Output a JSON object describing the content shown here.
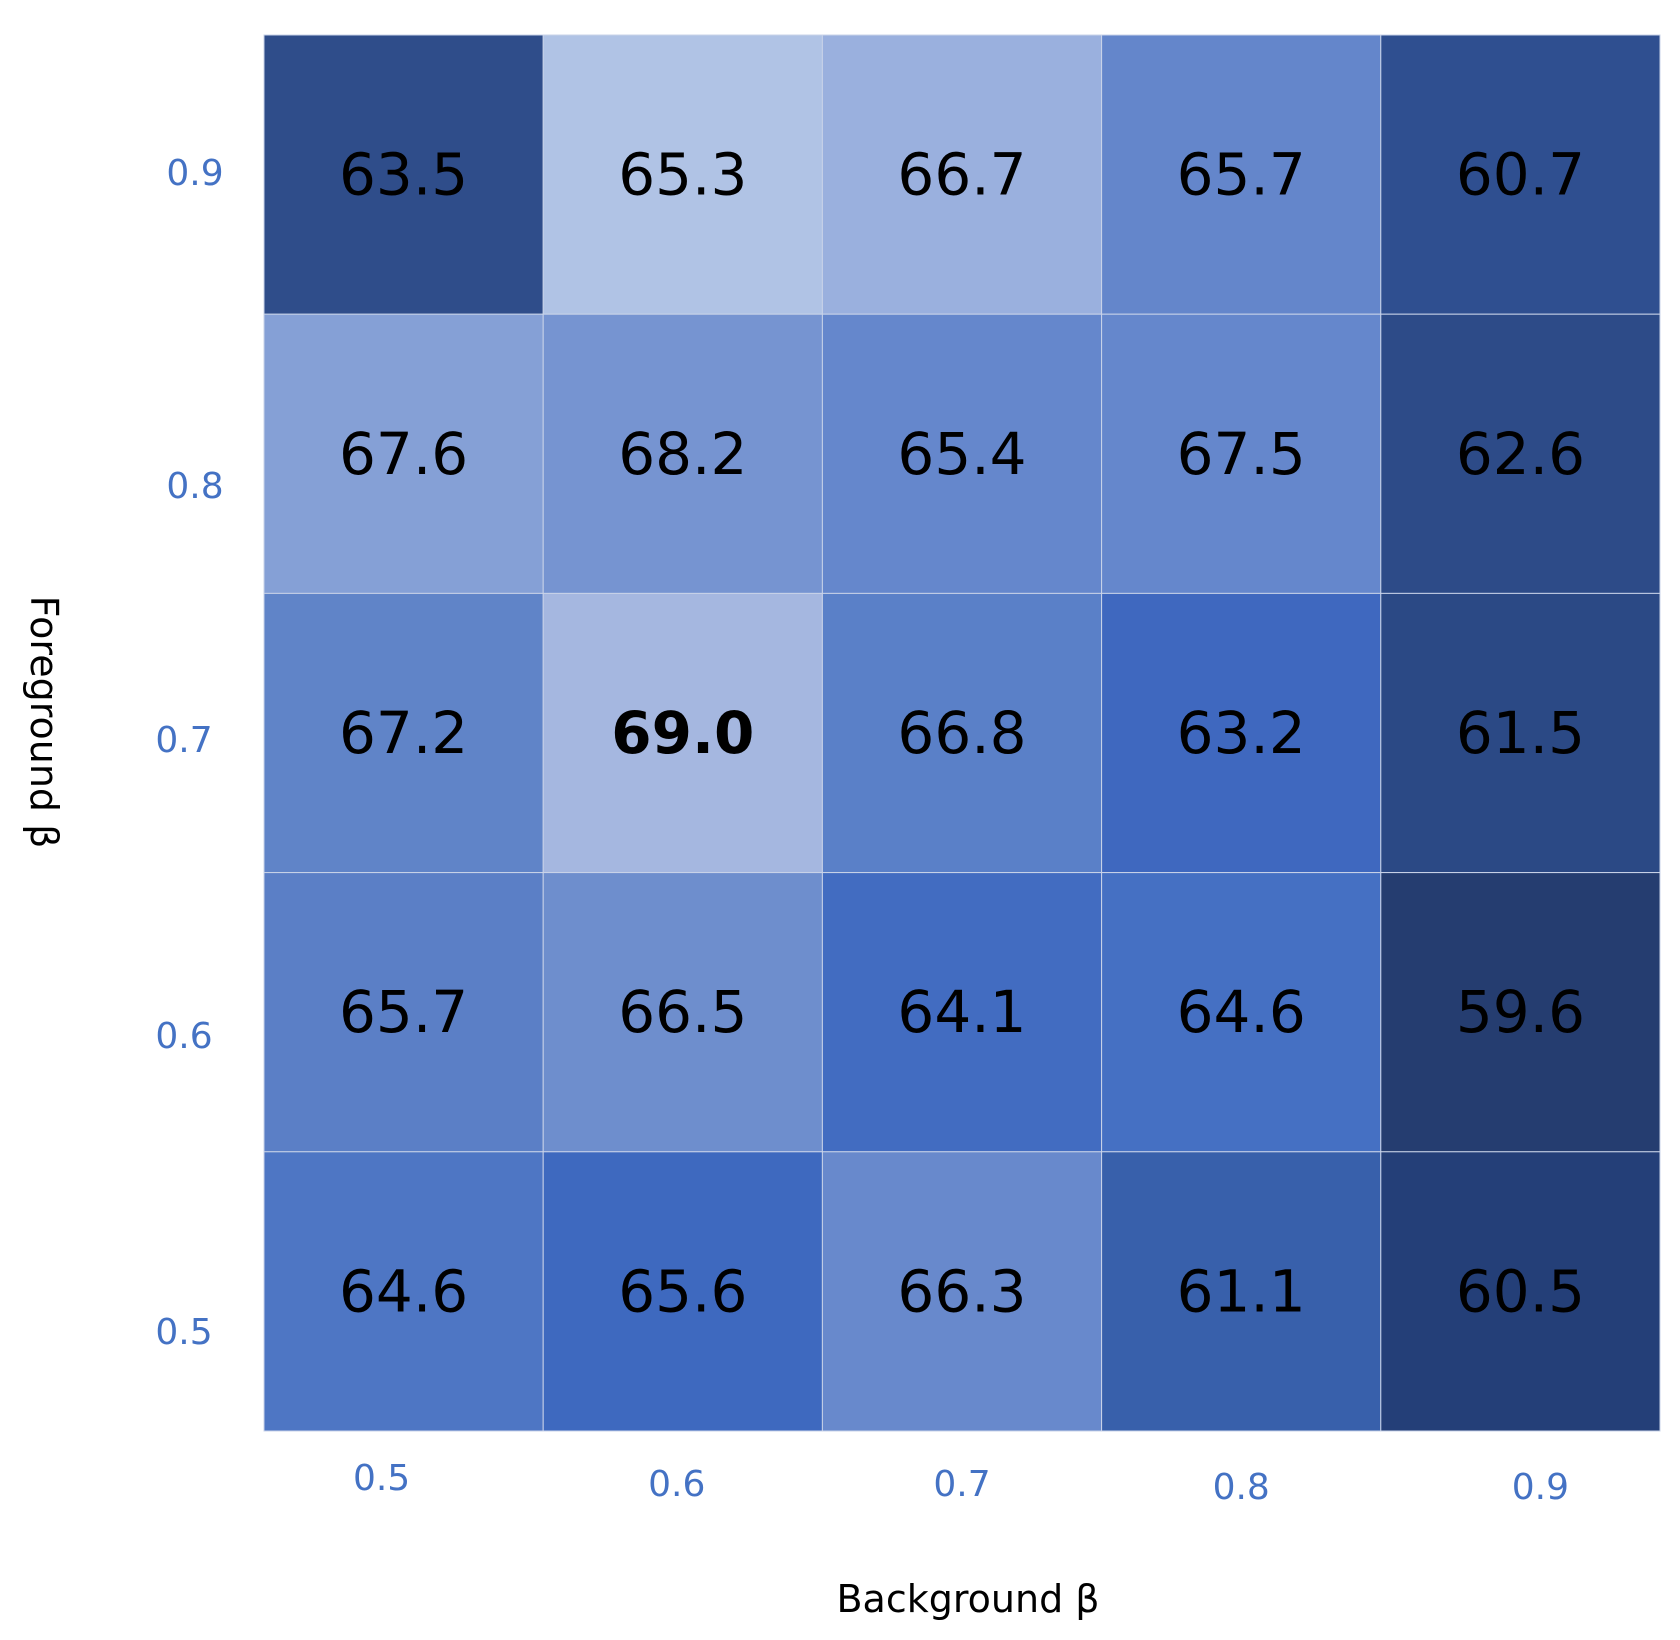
{
  "chart_data": {
    "type": "heatmap",
    "title": "",
    "xlabel": "Background  β",
    "ylabel": "Foreground  β",
    "x_categories": [
      "0.5",
      "0.6",
      "0.7",
      "0.8",
      "0.9"
    ],
    "y_categories_top_to_bottom": [
      "0.9",
      "0.8",
      "0.7",
      "0.6",
      "0.5"
    ],
    "values": [
      [
        "63.5",
        "65.3",
        "66.7",
        "65.7",
        "60.7"
      ],
      [
        "67.6",
        "68.2",
        "65.4",
        "67.5",
        "62.6"
      ],
      [
        "67.2",
        "69.0",
        "66.8",
        "63.2",
        "61.5"
      ],
      [
        "65.7",
        "66.5",
        "64.1",
        "64.6",
        "59.6"
      ],
      [
        "64.6",
        "65.6",
        "66.3",
        "61.1",
        "60.5"
      ]
    ],
    "cell_colors": [
      [
        "#2f4d8a",
        "#b0c3e5",
        "#9ab0de",
        "#6486cb",
        "#2f4f90"
      ],
      [
        "#85a0d6",
        "#7694d1",
        "#6587cc",
        "#6587cc",
        "#2d4b88"
      ],
      [
        "#6084c8",
        "#a5b7e0",
        "#5a80c8",
        "#3f68bf",
        "#2b4985"
      ],
      [
        "#5b7fc6",
        "#6e8ecd",
        "#426cc1",
        "#4570c3",
        "#253d70"
      ],
      [
        "#4e76c4",
        "#3e69bf",
        "#6889cc",
        "#3860ab",
        "#243f78"
      ]
    ],
    "bold_cell": {
      "row": 2,
      "col": 1
    },
    "colors": {
      "tick_text": "#4472c4",
      "cell_text": "#000000",
      "cell_border": "#c9d3e8"
    }
  }
}
